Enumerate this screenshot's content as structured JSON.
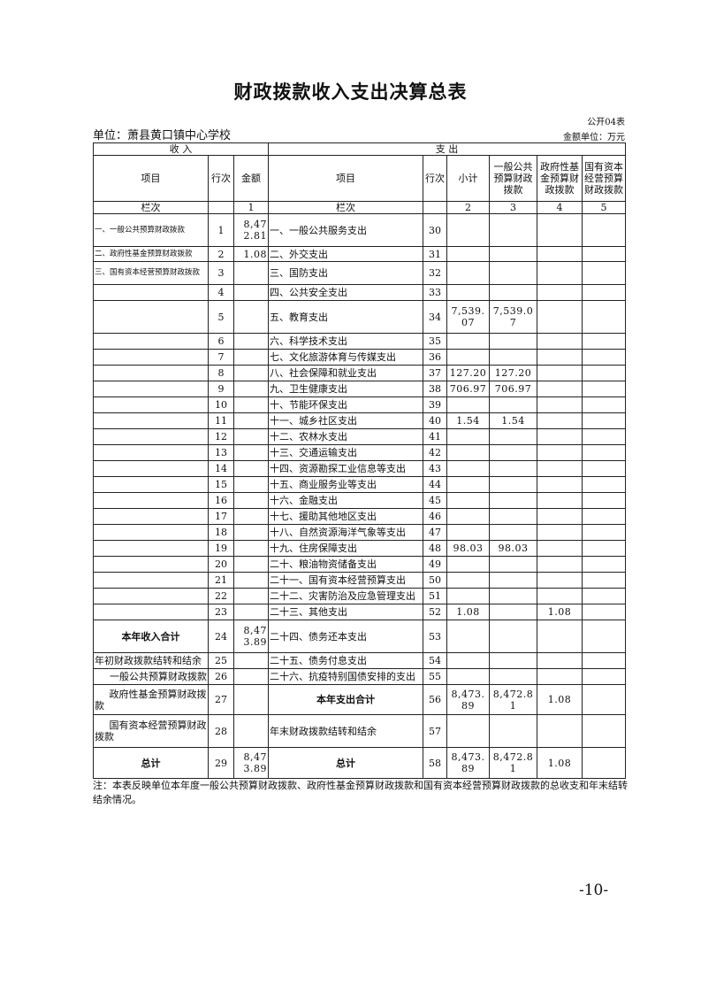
{
  "title": "财政拨款收入支出决算总表",
  "table_code": "公开04表",
  "unit": "单位：萧县黄口镇中心学校",
  "money_unit": "金额单位：万元",
  "header": {
    "income": "收      入",
    "expense": "支      出",
    "item": "项目",
    "row_no": "行次",
    "amount": "金额",
    "subtotal": "小计",
    "general": "一般公共预算财政拨款",
    "fund": "政府性基金预算财政拨款",
    "state": "国有资本经营预算财政拨款",
    "col_label": "栏次",
    "col_nums": [
      "1",
      "2",
      "3",
      "4",
      "5"
    ]
  },
  "rows": [
    {
      "li": "一、一般公共预算财政拨款",
      "ln": "1",
      "la": "8,472.81",
      "ri": "一、一般公共服务支出",
      "rn": "30",
      "s": "",
      "g": "",
      "f": "",
      "st": "",
      "lstyle": "small",
      "h": 37
    },
    {
      "li": "二、政府性基金预算财政拨款",
      "ln": "2",
      "la": "1.08",
      "ri": "二、外交支出",
      "rn": "31",
      "s": "",
      "g": "",
      "f": "",
      "st": "",
      "lstyle": "small",
      "h": 17
    },
    {
      "li": "三、国有资本经营预算财政拨款",
      "ln": "3",
      "la": "",
      "ri": "三、国防支出",
      "rn": "32",
      "s": "",
      "g": "",
      "f": "",
      "st": "",
      "lstyle": "small",
      "h": 26
    },
    {
      "li": "",
      "ln": "4",
      "la": "",
      "ri": "四、公共安全支出",
      "rn": "33",
      "s": "",
      "g": "",
      "f": "",
      "st": "",
      "h": 18
    },
    {
      "li": "",
      "ln": "5",
      "la": "",
      "ri": "五、教育支出",
      "rn": "34",
      "s": "7,539.07",
      "g": "7,539.07",
      "f": "",
      "st": "",
      "h": 37
    },
    {
      "li": "",
      "ln": "6",
      "la": "",
      "ri": "六、科学技术支出",
      "rn": "35",
      "s": "",
      "g": "",
      "f": "",
      "st": "",
      "h": 18
    },
    {
      "li": "",
      "ln": "7",
      "la": "",
      "ri": "七、文化旅游体育与传媒支出",
      "rn": "36",
      "s": "",
      "g": "",
      "f": "",
      "st": "",
      "h": 18
    },
    {
      "li": "",
      "ln": "8",
      "la": "",
      "ri": "八、社会保障和就业支出",
      "rn": "37",
      "s": "127.20",
      "g": "127.20",
      "f": "",
      "st": "",
      "h": 18
    },
    {
      "li": "",
      "ln": "9",
      "la": "",
      "ri": "九、卫生健康支出",
      "rn": "38",
      "s": "706.97",
      "g": "706.97",
      "f": "",
      "st": "",
      "h": 18
    },
    {
      "li": "",
      "ln": "10",
      "la": "",
      "ri": "十、节能环保支出",
      "rn": "39",
      "s": "",
      "g": "",
      "f": "",
      "st": "",
      "h": 18
    },
    {
      "li": "",
      "ln": "11",
      "la": "",
      "ri": "十一、城乡社区支出",
      "rn": "40",
      "s": "1.54",
      "g": "1.54",
      "f": "",
      "st": "",
      "h": 18
    },
    {
      "li": "",
      "ln": "12",
      "la": "",
      "ri": "十二、农林水支出",
      "rn": "41",
      "s": "",
      "g": "",
      "f": "",
      "st": "",
      "h": 18
    },
    {
      "li": "",
      "ln": "13",
      "la": "",
      "ri": "十三、交通运输支出",
      "rn": "42",
      "s": "",
      "g": "",
      "f": "",
      "st": "",
      "h": 18
    },
    {
      "li": "",
      "ln": "14",
      "la": "",
      "ri": "十四、资源勘探工业信息等支出",
      "rn": "43",
      "s": "",
      "g": "",
      "f": "",
      "st": "",
      "h": 18
    },
    {
      "li": "",
      "ln": "15",
      "la": "",
      "ri": "十五、商业服务业等支出",
      "rn": "44",
      "s": "",
      "g": "",
      "f": "",
      "st": "",
      "h": 18
    },
    {
      "li": "",
      "ln": "16",
      "la": "",
      "ri": "十六、金融支出",
      "rn": "45",
      "s": "",
      "g": "",
      "f": "",
      "st": "",
      "h": 18
    },
    {
      "li": "",
      "ln": "17",
      "la": "",
      "ri": "十七、援助其他地区支出",
      "rn": "46",
      "s": "",
      "g": "",
      "f": "",
      "st": "",
      "h": 18
    },
    {
      "li": "",
      "ln": "18",
      "la": "",
      "ri": "十八、自然资源海洋气象等支出",
      "rn": "47",
      "s": "",
      "g": "",
      "f": "",
      "st": "",
      "h": 18
    },
    {
      "li": "",
      "ln": "19",
      "la": "",
      "ri": "十九、住房保障支出",
      "rn": "48",
      "s": "98.03",
      "g": "98.03",
      "f": "",
      "st": "",
      "h": 18
    },
    {
      "li": "",
      "ln": "20",
      "la": "",
      "ri": "二十、粮油物资储备支出",
      "rn": "49",
      "s": "",
      "g": "",
      "f": "",
      "st": "",
      "h": 18
    },
    {
      "li": "",
      "ln": "21",
      "la": "",
      "ri": "二十一、国有资本经营预算支出",
      "rn": "50",
      "s": "",
      "g": "",
      "f": "",
      "st": "",
      "h": 18
    },
    {
      "li": "",
      "ln": "22",
      "la": "",
      "ri": "二十二、灾害防治及应急管理支出",
      "rn": "51",
      "s": "",
      "g": "",
      "f": "",
      "st": "",
      "h": 18
    },
    {
      "li": "",
      "ln": "23",
      "la": "",
      "ri": "二十三、其他支出",
      "rn": "52",
      "s": "1.08",
      "g": "",
      "f": "1.08",
      "st": "",
      "h": 18
    },
    {
      "li": "本年收入合计",
      "ln": "24",
      "la": "8,473.89",
      "ri": "二十四、债务还本支出",
      "rn": "53",
      "s": "",
      "g": "",
      "f": "",
      "st": "",
      "lstyle": "b",
      "h": 37
    },
    {
      "li": "年初财政拨款结转和结余",
      "ln": "25",
      "la": "",
      "ri": "二十五、债务付息支出",
      "rn": "54",
      "s": "",
      "g": "",
      "f": "",
      "st": "",
      "h": 18
    },
    {
      "li": "一般公共预算财政拨款",
      "ln": "26",
      "la": "",
      "ri": "二十六、抗疫特别国债安排的支出",
      "rn": "55",
      "s": "",
      "g": "",
      "f": "",
      "st": "",
      "lstyle": "r",
      "h": 18
    },
    {
      "li": "政府性基金预算财政拨款",
      "ln": "27",
      "la": "",
      "ri": "本年支出合计",
      "rn": "56",
      "s": "8,473.89",
      "g": "8,472.81",
      "f": "1.08",
      "st": "",
      "lstyle": "ind",
      "rstyle": "b",
      "h": 34
    },
    {
      "li": "国有资本经营预算财政拨款",
      "ln": "28",
      "la": "",
      "ri": "年末财政拨款结转和结余",
      "rn": "57",
      "s": "",
      "g": "",
      "f": "",
      "st": "",
      "lstyle": "ind",
      "h": 37
    },
    {
      "li": "总计",
      "ln": "29",
      "la": "8,473.89",
      "ri": "总计",
      "rn": "58",
      "s": "8,473.89",
      "g": "8,472.81",
      "f": "1.08",
      "st": "",
      "lstyle": "b",
      "rstyle": "b",
      "h": 35
    }
  ],
  "note": "注：本表反映单位本年度一般公共预算财政拨款、政府性基金预算财政拨款和国有资本经营预算财政拨款的总收支和年末结转结余情况。",
  "page_number": "-10-"
}
